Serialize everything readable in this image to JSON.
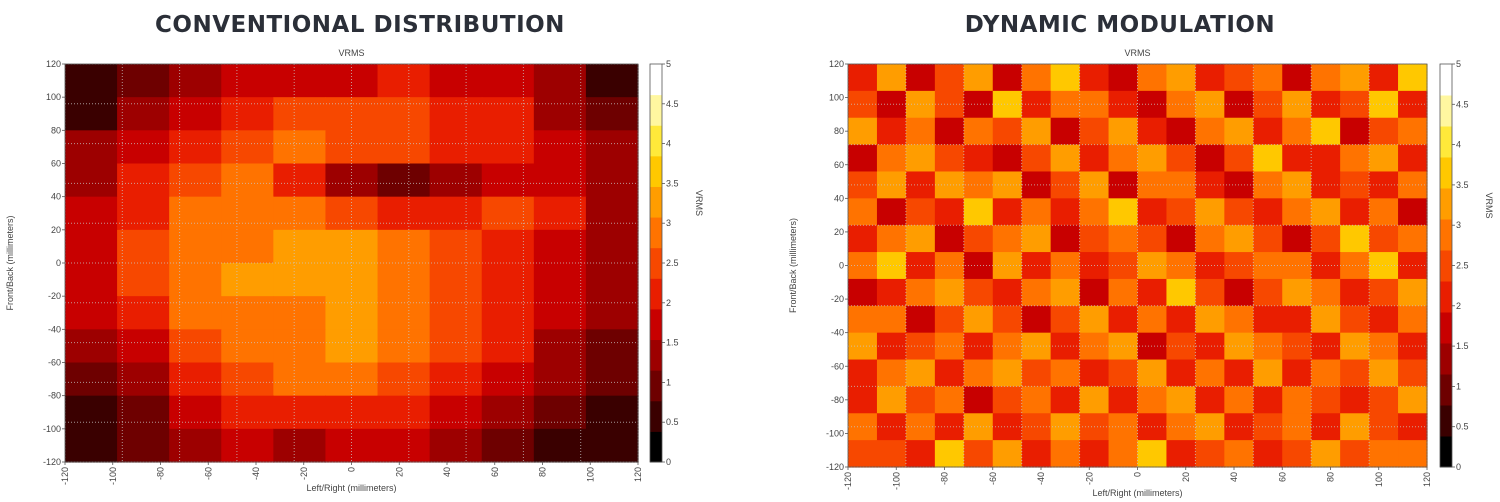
{
  "chart_data": [
    {
      "type": "heatmap",
      "title": "CONVENTIONAL DISTRIBUTION",
      "subtitle": "VRMS",
      "xlabel": "Left/Right (millimeters)",
      "ylabel": "Front/Back (millimeters)",
      "colorbar_label": "VRMS",
      "xlim": [
        -120,
        120
      ],
      "ylim": [
        -120,
        120
      ],
      "clim": [
        0,
        5
      ],
      "x_ticks": [
        -120,
        -100,
        -80,
        -60,
        -40,
        -20,
        0,
        20,
        40,
        60,
        80,
        100,
        120
      ],
      "y_ticks": [
        -120,
        -100,
        -80,
        -60,
        -40,
        -20,
        0,
        20,
        40,
        60,
        80,
        100,
        120
      ],
      "colorbar_ticks": [
        "0",
        "0.5",
        "1",
        "1.5",
        "2",
        "2.5",
        "3",
        "3.5",
        "4",
        "4.5",
        "5"
      ],
      "grid": true,
      "grid_x": [
        -120,
        -96,
        -72,
        -48,
        -24,
        0,
        24,
        48,
        72,
        96,
        120
      ],
      "grid_y": [
        -120,
        -96,
        -72,
        -48,
        -24,
        0,
        24,
        48,
        72,
        96,
        120
      ],
      "values": [
        [
          0.4,
          0.8,
          1.2,
          1.6,
          1.8,
          1.9,
          2.0,
          1.9,
          1.7,
          1.3,
          0.6
        ],
        [
          0.7,
          1.3,
          1.8,
          2.2,
          2.5,
          2.6,
          2.5,
          2.3,
          2.0,
          1.5,
          1.0
        ],
        [
          1.2,
          1.8,
          2.3,
          2.6,
          2.7,
          2.6,
          2.4,
          2.2,
          2.1,
          1.7,
          1.2
        ],
        [
          1.4,
          2.0,
          2.5,
          2.7,
          2.3,
          1.2,
          1.0,
          1.3,
          1.9,
          1.8,
          1.3
        ],
        [
          1.6,
          2.3,
          2.7,
          2.9,
          2.7,
          2.4,
          2.2,
          2.3,
          2.4,
          2.0,
          1.4
        ],
        [
          1.7,
          2.4,
          2.8,
          3.0,
          3.3,
          3.4,
          3.0,
          2.6,
          2.3,
          1.9,
          1.4
        ],
        [
          1.7,
          2.5,
          2.9,
          3.1,
          3.3,
          3.2,
          2.9,
          2.6,
          2.2,
          1.8,
          1.3
        ],
        [
          1.6,
          2.3,
          2.8,
          3.0,
          3.0,
          3.1,
          2.8,
          2.5,
          2.1,
          1.7,
          1.2
        ],
        [
          1.3,
          1.9,
          2.5,
          2.8,
          3.0,
          3.2,
          2.8,
          2.4,
          2.0,
          1.5,
          1.0
        ],
        [
          1.0,
          1.5,
          2.1,
          2.5,
          2.8,
          2.7,
          2.5,
          2.1,
          1.7,
          1.2,
          0.8
        ],
        [
          0.6,
          1.1,
          1.6,
          2.0,
          2.3,
          2.3,
          2.0,
          1.7,
          1.3,
          0.8,
          0.5
        ],
        [
          0.5,
          0.9,
          1.3,
          1.6,
          1.5,
          1.7,
          1.6,
          1.4,
          1.0,
          0.6,
          0.4
        ]
      ]
    },
    {
      "type": "heatmap",
      "title": "DYNAMIC MODULATION",
      "subtitle": "VRMS",
      "xlabel": "Left/Right (millimeters)",
      "ylabel": "Front/Back (millimeters)",
      "colorbar_label": "VRMS",
      "xlim": [
        -120,
        120
      ],
      "ylim": [
        -120,
        120
      ],
      "clim": [
        0,
        5
      ],
      "x_ticks": [
        -120,
        -100,
        -80,
        -60,
        -40,
        -20,
        0,
        20,
        40,
        60,
        80,
        100,
        120
      ],
      "y_ticks": [
        -120,
        -100,
        -80,
        -60,
        -40,
        -20,
        0,
        20,
        40,
        60,
        80,
        100,
        120
      ],
      "colorbar_ticks": [
        "0",
        "0.5",
        "1",
        "1.5",
        "2",
        "2.5",
        "3",
        "3.5",
        "4",
        "4.5",
        "5"
      ],
      "grid": true,
      "grid_x": [
        -120,
        -96,
        -72,
        -48,
        -24,
        0,
        24,
        48,
        72,
        96,
        120
      ],
      "grid_y": [
        -120,
        -96,
        -72,
        -48,
        -24,
        0,
        24,
        48,
        72,
        96,
        120
      ],
      "values": [
        [
          2.1,
          3.4,
          1.8,
          2.6,
          3.1,
          1.9,
          2.8,
          3.6,
          2.2,
          1.7,
          2.9,
          3.3,
          2.0,
          2.5,
          3.0,
          1.8,
          2.7,
          3.2,
          2.3,
          3.5
        ],
        [
          2.6,
          1.9,
          3.2,
          2.4,
          1.8,
          3.5,
          2.1,
          2.7,
          3.0,
          2.3,
          1.6,
          2.8,
          3.4,
          1.9,
          2.5,
          3.1,
          2.0,
          2.6,
          3.7,
          2.2
        ],
        [
          3.3,
          2.2,
          2.7,
          1.7,
          3.0,
          2.4,
          3.3,
          1.9,
          2.6,
          3.4,
          2.1,
          1.8,
          2.9,
          3.2,
          2.0,
          2.7,
          3.5,
          1.9,
          2.4,
          3.0
        ],
        [
          1.8,
          2.9,
          3.1,
          2.5,
          2.2,
          1.8,
          2.6,
          3.4,
          2.0,
          2.8,
          3.3,
          2.4,
          1.9,
          2.6,
          3.6,
          2.1,
          2.3,
          2.9,
          3.1,
          2.0
        ],
        [
          2.5,
          3.2,
          2.0,
          3.4,
          2.7,
          3.1,
          1.9,
          2.5,
          3.3,
          1.8,
          2.7,
          3.0,
          2.2,
          1.8,
          2.9,
          3.3,
          2.0,
          2.6,
          2.2,
          2.8
        ],
        [
          3.0,
          1.8,
          2.6,
          2.2,
          3.5,
          2.0,
          2.9,
          2.2,
          2.8,
          3.6,
          2.0,
          2.5,
          3.1,
          2.4,
          2.1,
          2.8,
          3.4,
          2.2,
          3.0,
          1.9
        ],
        [
          2.2,
          2.7,
          3.3,
          1.9,
          2.4,
          2.8,
          3.2,
          1.8,
          2.4,
          3.0,
          2.6,
          1.9,
          2.7,
          3.3,
          2.5,
          1.9,
          2.6,
          3.8,
          2.4,
          2.7
        ],
        [
          2.8,
          3.5,
          2.1,
          2.9,
          1.8,
          3.3,
          2.3,
          3.0,
          2.1,
          2.5,
          3.2,
          2.8,
          2.0,
          2.4,
          3.0,
          2.7,
          2.2,
          2.9,
          3.6,
          2.1
        ],
        [
          1.9,
          2.3,
          2.8,
          3.2,
          2.6,
          2.0,
          2.7,
          3.4,
          1.9,
          2.8,
          2.3,
          3.5,
          2.6,
          1.9,
          2.5,
          3.1,
          2.8,
          2.0,
          2.6,
          3.2
        ],
        [
          2.7,
          3.0,
          1.9,
          2.5,
          3.3,
          2.6,
          1.8,
          2.6,
          3.1,
          2.2,
          2.9,
          2.1,
          3.3,
          2.8,
          2.2,
          2.0,
          3.3,
          2.5,
          2.1,
          2.8
        ],
        [
          3.4,
          2.0,
          2.6,
          3.0,
          2.1,
          2.8,
          3.4,
          2.2,
          2.7,
          3.3,
          1.9,
          2.6,
          2.3,
          3.1,
          2.9,
          2.5,
          2.1,
          3.1,
          2.8,
          2.2
        ],
        [
          2.3,
          2.8,
          3.4,
          2.1,
          2.8,
          3.2,
          2.4,
          2.9,
          2.0,
          2.6,
          3.1,
          2.3,
          2.9,
          2.2,
          3.4,
          2.1,
          2.8,
          2.4,
          3.2,
          2.6
        ],
        [
          2.0,
          3.3,
          2.4,
          2.8,
          1.9,
          2.5,
          3.0,
          2.0,
          3.4,
          2.2,
          2.7,
          3.2,
          2.1,
          2.7,
          2.0,
          3.0,
          2.5,
          2.2,
          2.6,
          3.3
        ],
        [
          2.9,
          2.1,
          3.0,
          2.3,
          3.2,
          2.0,
          2.6,
          3.2,
          2.5,
          3.0,
          2.1,
          2.8,
          3.4,
          2.3,
          2.6,
          2.8,
          2.1,
          3.3,
          2.4,
          2.1
        ],
        [
          2.4,
          2.6,
          2.2,
          3.5,
          2.5,
          3.3,
          2.2,
          2.7,
          2.2,
          2.7,
          3.5,
          2.0,
          2.6,
          3.0,
          2.1,
          2.4,
          3.2,
          2.6,
          2.9,
          2.7
        ]
      ]
    }
  ],
  "colors": {
    "colormap": [
      "#000000",
      "#3a0000",
      "#6e0000",
      "#9d0000",
      "#c80000",
      "#e91e00",
      "#f74800",
      "#ff7300",
      "#ff9d00",
      "#ffc800",
      "#ffe93a",
      "#fff7a0",
      "#ffffff"
    ],
    "title": "#2b2f38",
    "grid": "#c8c8c8",
    "axis": "#444444"
  }
}
